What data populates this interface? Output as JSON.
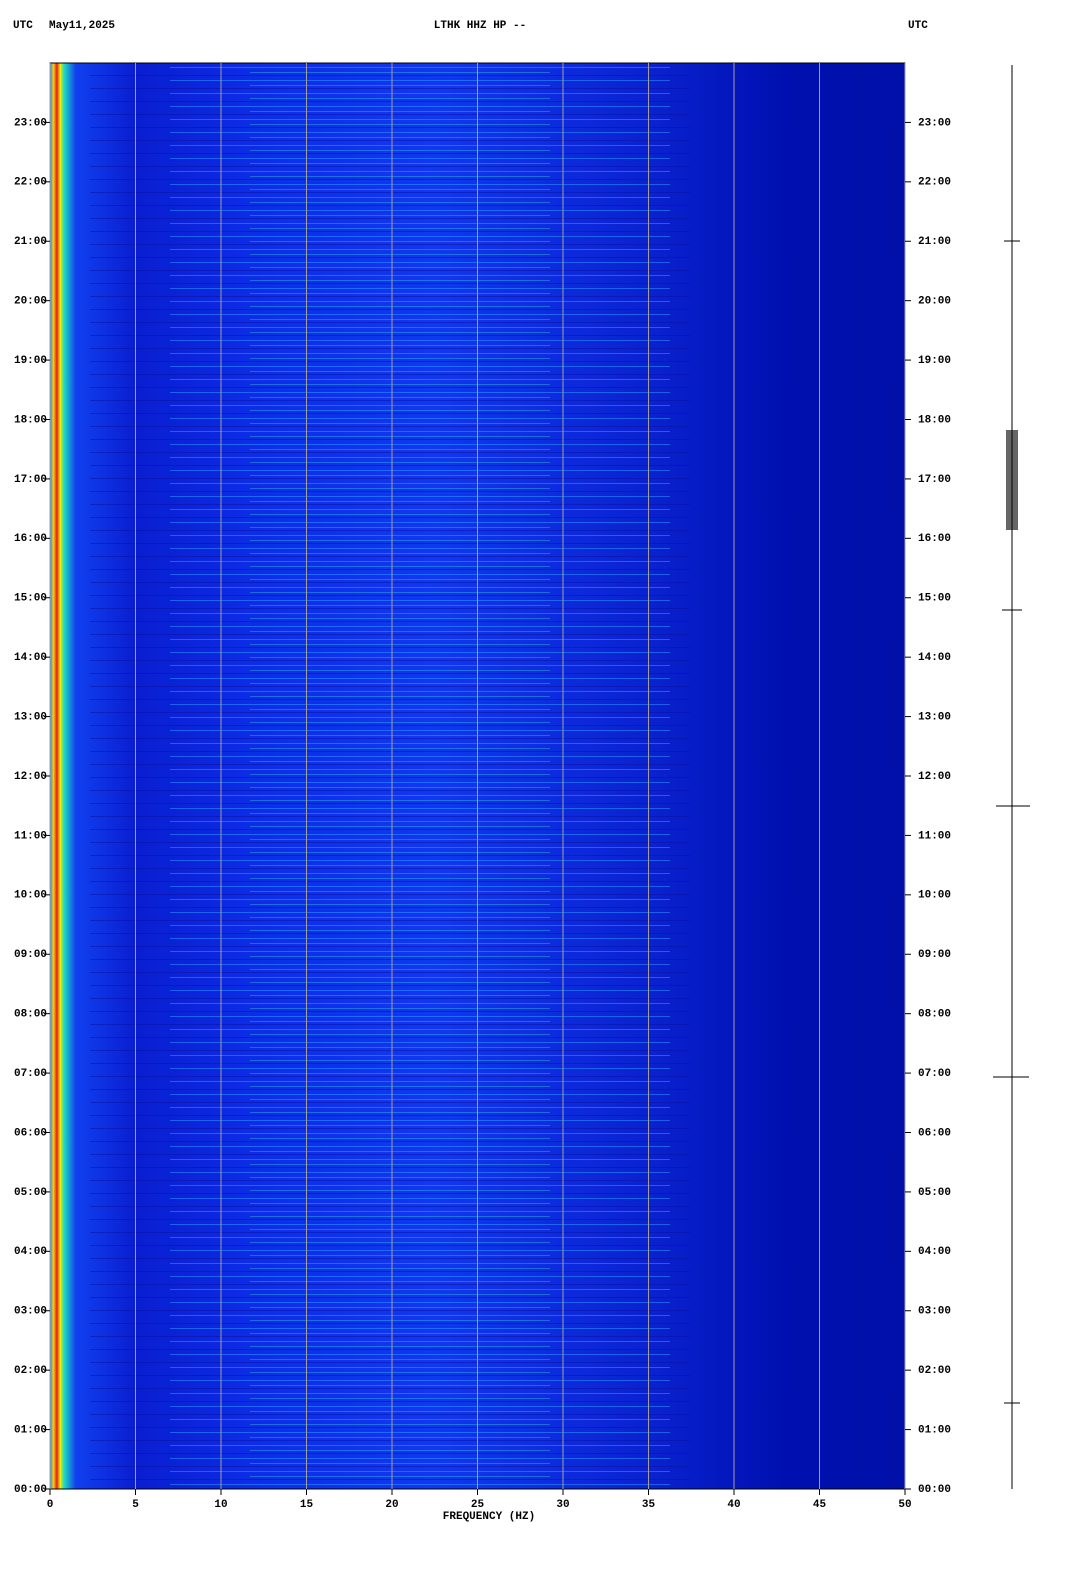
{
  "header": {
    "left_label": "UTC",
    "date": "May11,2025",
    "station": "LTHK HHZ HP --",
    "right_label": "UTC"
  },
  "chart_data": {
    "type": "spectrogram",
    "x_label": "FREQUENCY (HZ)",
    "xlim": [
      0,
      50
    ],
    "xticks": [
      0,
      5,
      10,
      15,
      20,
      25,
      30,
      35,
      40,
      45,
      50
    ],
    "ylim": [
      0,
      24
    ],
    "yticks": [
      {
        "value": 0,
        "label": "00:00"
      },
      {
        "value": 1,
        "label": "01:00"
      },
      {
        "value": 2,
        "label": "02:00"
      },
      {
        "value": 3,
        "label": "03:00"
      },
      {
        "value": 4,
        "label": "04:00"
      },
      {
        "value": 5,
        "label": "05:00"
      },
      {
        "value": 6,
        "label": "06:00"
      },
      {
        "value": 7,
        "label": "07:00"
      },
      {
        "value": 8,
        "label": "08:00"
      },
      {
        "value": 9,
        "label": "09:00"
      },
      {
        "value": 10,
        "label": "10:00"
      },
      {
        "value": 11,
        "label": "11:00"
      },
      {
        "value": 12,
        "label": "12:00"
      },
      {
        "value": 13,
        "label": "13:00"
      },
      {
        "value": 14,
        "label": "14:00"
      },
      {
        "value": 15,
        "label": "15:00"
      },
      {
        "value": 16,
        "label": "16:00"
      },
      {
        "value": 17,
        "label": "17:00"
      },
      {
        "value": 18,
        "label": "18:00"
      },
      {
        "value": 19,
        "label": "19:00"
      },
      {
        "value": 20,
        "label": "20:00"
      },
      {
        "value": 21,
        "label": "21:00"
      },
      {
        "value": 22,
        "label": "22:00"
      },
      {
        "value": 23,
        "label": "23:00"
      }
    ],
    "grid": true
  }
}
